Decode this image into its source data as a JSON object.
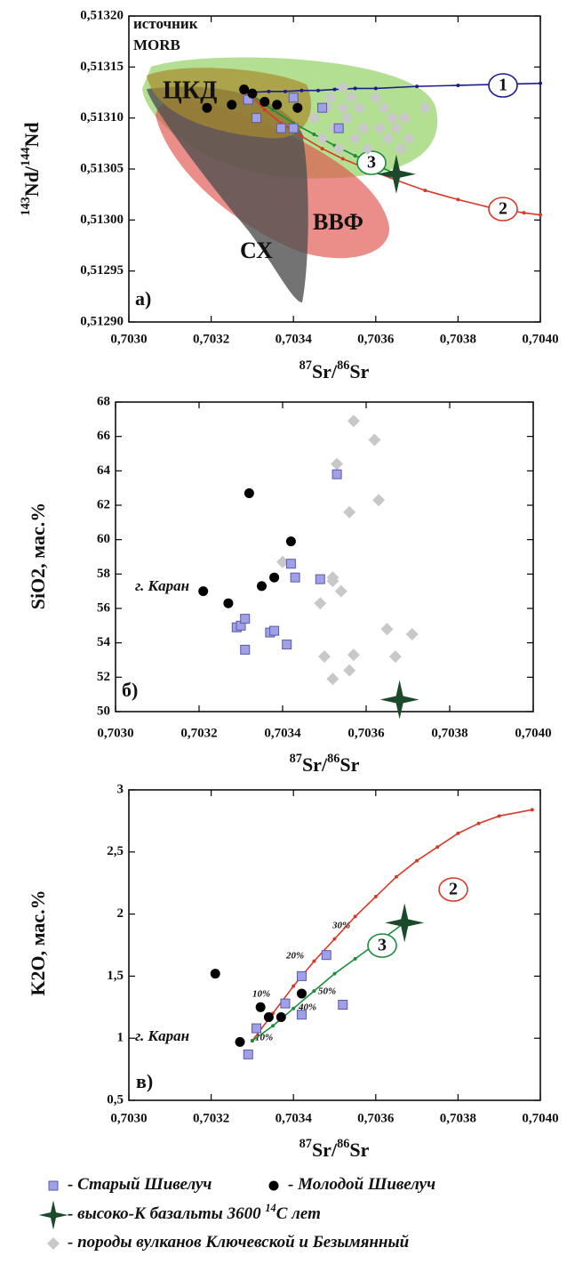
{
  "chart_data": [
    {
      "type": "scatter",
      "panel_label": "а)",
      "xlabel": [
        {
          "text": "87",
          "sup": true
        },
        {
          "text": "Sr/"
        },
        {
          "text": "86",
          "sup": true
        },
        {
          "text": "Sr"
        }
      ],
      "ylabel": [
        {
          "text": "143",
          "sup": true
        },
        {
          "text": "Nd/"
        },
        {
          "text": "144",
          "sup": true
        },
        {
          "text": "Nd"
        }
      ],
      "xlim": [
        0.703,
        0.704
      ],
      "xticks": [
        {
          "value": 0.703,
          "label": "0,7030"
        },
        {
          "value": 0.7032,
          "label": "0,7032"
        },
        {
          "value": 0.7034,
          "label": "0,7034"
        },
        {
          "value": 0.7036,
          "label": "0,7036"
        },
        {
          "value": 0.7038,
          "label": "0,7038"
        },
        {
          "value": 0.704,
          "label": "0,7040"
        }
      ],
      "ylim": [
        0.5129,
        0.5132
      ],
      "yticks": [
        {
          "value": 0.5129,
          "label": "0,51290"
        },
        {
          "value": 0.51295,
          "label": "0,51295"
        },
        {
          "value": 0.513,
          "label": "0,51300"
        },
        {
          "value": 0.51305,
          "label": "0,51305"
        },
        {
          "value": 0.5131,
          "label": "0,51310"
        },
        {
          "value": 0.51315,
          "label": "0,51315"
        },
        {
          "value": 0.5132,
          "label": "0,51320"
        }
      ],
      "series": [
        {
          "marker": "line",
          "name": "1",
          "color": "#1c1c8c",
          "x": [
            0.70329,
            0.70334,
            0.70338,
            0.70342,
            0.70346,
            0.7035,
            0.70355,
            0.7036,
            0.7037,
            0.7038,
            0.7039,
            0.704
          ],
          "y": [
            0.513125,
            0.513126,
            0.513126,
            0.513127,
            0.513127,
            0.513128,
            0.513129,
            0.513129,
            0.513131,
            0.513132,
            0.513133,
            0.513134
          ]
        },
        {
          "marker": "line",
          "name": "2",
          "color": "#d83a2a",
          "x": [
            0.70329,
            0.70333,
            0.70337,
            0.70342,
            0.70347,
            0.70352,
            0.70358,
            0.70365,
            0.70372,
            0.7038,
            0.70388,
            0.70396,
            0.704
          ],
          "y": [
            0.513125,
            0.513108,
            0.513095,
            0.513082,
            0.51307,
            0.51306,
            0.51305,
            0.513039,
            0.513029,
            0.51302,
            0.513012,
            0.513007,
            0.513005
          ]
        },
        {
          "marker": "line",
          "name": "3",
          "color": "#1c8c3c",
          "x": [
            0.70329,
            0.70335,
            0.7034,
            0.70345,
            0.7035,
            0.70355,
            0.7036,
            0.70365
          ],
          "y": [
            0.513125,
            0.513108,
            0.513095,
            0.513084,
            0.513073,
            0.513063,
            0.513054,
            0.513045
          ]
        },
        {
          "marker": "diamond",
          "x": [
            0.70345,
            0.70347,
            0.70348,
            0.70349,
            0.7035,
            0.70351,
            0.70352,
            0.70352,
            0.70353,
            0.70354,
            0.70355,
            0.70356,
            0.70357,
            0.70358,
            0.7036,
            0.70361,
            0.70362,
            0.70363,
            0.70364,
            0.70365,
            0.70366,
            0.70367,
            0.70368,
            0.70372
          ],
          "y": [
            0.5131,
            0.51308,
            0.51311,
            0.51312,
            0.51309,
            0.51307,
            0.51311,
            0.51313,
            0.5131,
            0.51312,
            0.51308,
            0.51311,
            0.51309,
            0.51307,
            0.51312,
            0.51309,
            0.51311,
            0.51308,
            0.5131,
            0.51309,
            0.51307,
            0.5131,
            0.51308,
            0.51311
          ]
        },
        {
          "marker": "square",
          "x": [
            0.70329,
            0.70331,
            0.70337,
            0.7034,
            0.7034,
            0.70347,
            0.70351
          ],
          "y": [
            0.513118,
            0.5131,
            0.51309,
            0.51309,
            0.51312,
            0.51311,
            0.51309
          ]
        },
        {
          "marker": "circle",
          "x": [
            0.70319,
            0.70325,
            0.70328,
            0.7033,
            0.70333,
            0.70336,
            0.70341
          ],
          "y": [
            0.51311,
            0.513113,
            0.513128,
            0.513124,
            0.513116,
            0.513113,
            0.51311
          ]
        },
        {
          "marker": "star",
          "x": [
            0.70365
          ],
          "y": [
            0.513045
          ]
        }
      ],
      "annotations": [
        {
          "text": "источник"
        },
        {
          "text": "MORB"
        },
        {
          "text": "ЦКД"
        },
        {
          "text": "ВВФ"
        },
        {
          "text": "СХ"
        }
      ]
    },
    {
      "type": "scatter",
      "panel_label": "б)",
      "xlabel": [
        {
          "text": "87",
          "sup": true
        },
        {
          "text": "Sr/"
        },
        {
          "text": "86",
          "sup": true
        },
        {
          "text": "Sr"
        }
      ],
      "ylabel": [
        {
          "text": "SiO2, мас.%"
        }
      ],
      "xlim": [
        0.703,
        0.704
      ],
      "xticks": [
        {
          "value": 0.703,
          "label": "0,7030"
        },
        {
          "value": 0.7032,
          "label": "0,7032"
        },
        {
          "value": 0.7034,
          "label": "0,7034"
        },
        {
          "value": 0.7036,
          "label": "0,7036"
        },
        {
          "value": 0.7038,
          "label": "0,7038"
        },
        {
          "value": 0.704,
          "label": "0,7040"
        }
      ],
      "ylim": [
        50,
        68
      ],
      "yticks": [
        50,
        52,
        54,
        56,
        58,
        60,
        62,
        64,
        66,
        68
      ],
      "series": [
        {
          "marker": "diamond",
          "x": [
            0.7034,
            0.70349,
            0.7035,
            0.70352,
            0.70352,
            0.70352,
            0.70353,
            0.70354,
            0.70356,
            0.70356,
            0.70357,
            0.70357,
            0.70362,
            0.70363,
            0.70365,
            0.70367,
            0.70371
          ],
          "y": [
            58.7,
            56.3,
            53.2,
            51.9,
            57.6,
            57.8,
            64.4,
            57,
            52.4,
            61.6,
            53.3,
            66.9,
            65.8,
            62.3,
            54.8,
            53.2,
            54.5
          ]
        },
        {
          "marker": "square",
          "x": [
            0.70329,
            0.7033,
            0.70331,
            0.70331,
            0.70337,
            0.70338,
            0.70341,
            0.70342,
            0.70343,
            0.70349,
            0.70353
          ],
          "y": [
            54.9,
            55,
            55.4,
            53.6,
            54.6,
            54.7,
            53.9,
            58.6,
            57.8,
            57.7,
            63.8
          ]
        },
        {
          "marker": "circle",
          "x": [
            0.70321,
            0.70327,
            0.70332,
            0.70335,
            0.70338,
            0.70342
          ],
          "y": [
            57,
            56.3,
            62.7,
            57.3,
            57.8,
            59.9
          ]
        },
        {
          "marker": "star",
          "x": [
            0.70368
          ],
          "y": [
            50.7
          ]
        }
      ],
      "annotations": [
        {
          "text": "г. Каран"
        }
      ]
    },
    {
      "type": "scatter",
      "panel_label": "в)",
      "xlabel": [
        {
          "text": "87",
          "sup": true
        },
        {
          "text": "Sr/"
        },
        {
          "text": "86",
          "sup": true
        },
        {
          "text": "Sr"
        }
      ],
      "ylabel": [
        {
          "text": "K2O, мас.%"
        }
      ],
      "xlim": [
        0.703,
        0.704
      ],
      "xticks": [
        {
          "value": 0.703,
          "label": "0,7030"
        },
        {
          "value": 0.7032,
          "label": "0,7032"
        },
        {
          "value": 0.7034,
          "label": "0,7034"
        },
        {
          "value": 0.7036,
          "label": "0,7036"
        },
        {
          "value": 0.7038,
          "label": "0,7038"
        },
        {
          "value": 0.704,
          "label": "0,7040"
        }
      ],
      "ylim": [
        0.5,
        3
      ],
      "yticks": [
        {
          "value": 0.5,
          "label": "0,5"
        },
        1,
        {
          "value": 1.5,
          "label": "1,5"
        },
        2,
        {
          "value": 2.5,
          "label": "2,5"
        },
        3
      ],
      "series": [
        {
          "marker": "line",
          "name": "2",
          "color": "#d83a2a",
          "x": [
            0.7033,
            0.70335,
            0.7034,
            0.70345,
            0.7035,
            0.70355,
            0.7036,
            0.70365,
            0.7037,
            0.70375,
            0.7038,
            0.70385,
            0.7039,
            0.70398
          ],
          "y": [
            0.98,
            1.2,
            1.42,
            1.62,
            1.8,
            1.98,
            2.14,
            2.3,
            2.43,
            2.54,
            2.65,
            2.73,
            2.79,
            2.84
          ]
        },
        {
          "marker": "line",
          "name": "3",
          "color": "#1c8c3c",
          "x": [
            0.7033,
            0.70335,
            0.7034,
            0.70345,
            0.7035,
            0.70355,
            0.7036,
            0.70367
          ],
          "y": [
            0.98,
            1.1,
            1.24,
            1.38,
            1.52,
            1.64,
            1.76,
            1.93
          ]
        },
        {
          "marker": "square",
          "x": [
            0.70329,
            0.70331,
            0.70338,
            0.70342,
            0.70342,
            0.70348,
            0.70352
          ],
          "y": [
            0.87,
            1.08,
            1.28,
            1.5,
            1.19,
            1.67,
            1.27
          ]
        },
        {
          "marker": "circle",
          "x": [
            0.70321,
            0.70327,
            0.70332,
            0.70334,
            0.70337,
            0.70342
          ],
          "y": [
            1.52,
            0.97,
            1.25,
            1.17,
            1.17,
            1.36
          ]
        },
        {
          "marker": "star",
          "x": [
            0.70367
          ],
          "y": [
            1.93
          ]
        }
      ],
      "annotations": [
        {
          "text": "г. Каран"
        },
        {
          "text": "10%",
          "color": "#c0302a"
        },
        {
          "text": "20%",
          "color": "#c0302a"
        },
        {
          "text": "30%",
          "color": "#c0302a"
        },
        {
          "text": "10%",
          "color": "#1c8c3c"
        },
        {
          "text": "40%",
          "color": "#1c8c3c"
        },
        {
          "text": "50%",
          "color": "#1c8c3c"
        }
      ]
    }
  ],
  "legend": [
    {
      "marker": "square",
      "color": "#9fa0e8",
      "label": [
        {
          "text": "- Старый Шивелуч"
        }
      ]
    },
    {
      "marker": "circle",
      "color": "#000000",
      "label": [
        {
          "text": "- Молодой Шивелуч"
        }
      ]
    },
    {
      "marker": "star",
      "color": "#1b4a2a",
      "label": [
        {
          "text": "- высоко-К базальты 3600 "
        },
        {
          "text": "14",
          "sup": true
        },
        {
          "text": "С лет"
        }
      ]
    },
    {
      "marker": "diamond",
      "color": "#c8c8c8",
      "label": [
        {
          "text": "- породы вулканов Ключевской и Безымянный"
        }
      ]
    }
  ]
}
